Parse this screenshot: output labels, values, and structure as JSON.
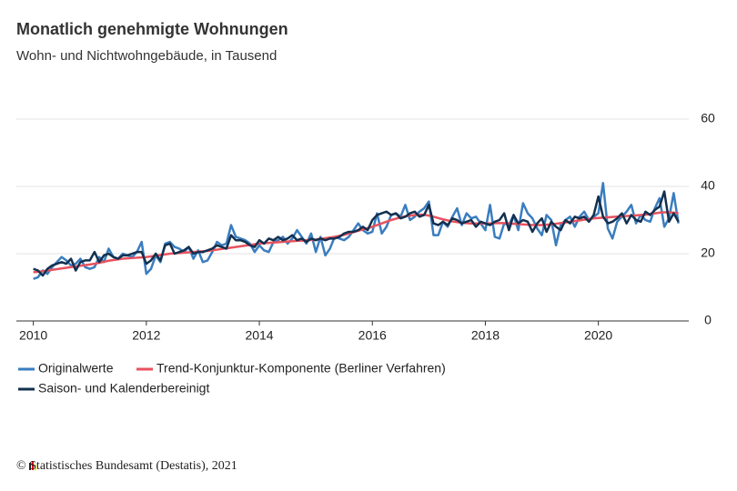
{
  "chart_data": {
    "type": "line",
    "title": "Monatlich genehmigte Wohnungen",
    "subtitle": "Wohn- und Nichtwohngebäude, in Tausend",
    "source": "© Statistisches Bundesamt (Destatis), 2021",
    "xlim": [
      2009.7,
      2021.6
    ],
    "xticks": [
      2010,
      2012,
      2014,
      2016,
      2018,
      2020
    ],
    "ylim": [
      0,
      60
    ],
    "yticks": [
      0,
      20,
      40,
      60
    ],
    "grid": true,
    "legend": "bottom",
    "x": [
      2010,
      2010.083,
      2010.167,
      2010.25,
      2010.333,
      2010.417,
      2010.5,
      2010.583,
      2010.667,
      2010.75,
      2010.833,
      2010.917,
      2011,
      2011.083,
      2011.167,
      2011.25,
      2011.333,
      2011.417,
      2011.5,
      2011.583,
      2011.667,
      2011.75,
      2011.833,
      2011.917,
      2012,
      2012.083,
      2012.167,
      2012.25,
      2012.333,
      2012.417,
      2012.5,
      2012.583,
      2012.667,
      2012.75,
      2012.833,
      2012.917,
      2013,
      2013.083,
      2013.167,
      2013.25,
      2013.333,
      2013.417,
      2013.5,
      2013.583,
      2013.667,
      2013.75,
      2013.833,
      2013.917,
      2014,
      2014.083,
      2014.167,
      2014.25,
      2014.333,
      2014.417,
      2014.5,
      2014.583,
      2014.667,
      2014.75,
      2014.833,
      2014.917,
      2015,
      2015.083,
      2015.167,
      2015.25,
      2015.333,
      2015.417,
      2015.5,
      2015.583,
      2015.667,
      2015.75,
      2015.833,
      2015.917,
      2016,
      2016.083,
      2016.167,
      2016.25,
      2016.333,
      2016.417,
      2016.5,
      2016.583,
      2016.667,
      2016.75,
      2016.833,
      2016.917,
      2017,
      2017.083,
      2017.167,
      2017.25,
      2017.333,
      2017.417,
      2017.5,
      2017.583,
      2017.667,
      2017.75,
      2017.833,
      2017.917,
      2018,
      2018.083,
      2018.167,
      2018.25,
      2018.333,
      2018.417,
      2018.5,
      2018.583,
      2018.667,
      2018.75,
      2018.833,
      2018.917,
      2019,
      2019.083,
      2019.167,
      2019.25,
      2019.333,
      2019.417,
      2019.5,
      2019.583,
      2019.667,
      2019.75,
      2019.833,
      2019.917,
      2020,
      2020.083,
      2020.167,
      2020.25,
      2020.333,
      2020.417,
      2020.5,
      2020.583,
      2020.667,
      2020.75,
      2020.833,
      2020.917,
      2021,
      2021.083,
      2021.167,
      2021.25,
      2021.333,
      2021.417
    ],
    "series": [
      {
        "name": "Originalwerte",
        "color": "#3a7dbf",
        "values": [
          12.5,
          13.0,
          15.0,
          14.0,
          16.0,
          17.5,
          19.0,
          18.0,
          16.5,
          17.0,
          18.5,
          16.0,
          15.5,
          16.0,
          19.0,
          17.5,
          21.5,
          19.0,
          18.5,
          20.0,
          19.5,
          19.0,
          20.5,
          23.5,
          14.0,
          15.5,
          19.5,
          17.5,
          23.0,
          23.5,
          22.0,
          21.5,
          20.5,
          22.0,
          18.5,
          21.0,
          17.5,
          18.0,
          20.5,
          23.5,
          22.5,
          23.0,
          28.5,
          25.0,
          24.5,
          24.0,
          23.0,
          20.5,
          22.5,
          21.0,
          20.5,
          23.5,
          24.0,
          25.0,
          23.0,
          24.5,
          27.0,
          25.0,
          23.0,
          26.0,
          20.5,
          25.0,
          19.5,
          21.5,
          25.0,
          24.5,
          24.0,
          25.0,
          27.0,
          29.0,
          27.0,
          26.0,
          26.5,
          32.0,
          26.0,
          28.0,
          31.5,
          32.0,
          31.0,
          34.5,
          30.0,
          31.0,
          32.5,
          33.5,
          35.5,
          25.5,
          25.5,
          29.5,
          28.0,
          31.0,
          33.5,
          28.5,
          32.0,
          30.5,
          31.0,
          29.0,
          27.0,
          34.5,
          25.0,
          24.5,
          29.0,
          28.5,
          31.5,
          27.0,
          35.0,
          32.0,
          30.5,
          27.5,
          25.5,
          31.5,
          30.0,
          22.5,
          28.5,
          30.0,
          31.0,
          28.0,
          31.0,
          32.5,
          30.0,
          31.0,
          32.0,
          41.0,
          27.5,
          24.5,
          29.5,
          31.0,
          32.5,
          34.5,
          29.0,
          31.5,
          30.0,
          29.5,
          33.5,
          36.5,
          28.0,
          30.5,
          38.0,
          29.0
        ]
      },
      {
        "name": "Trend-Konjunktur-Komponente (Berliner Verfahren)",
        "color": "#e8525e",
        "values": [
          14.5,
          14.6,
          14.8,
          15.0,
          15.2,
          15.4,
          15.6,
          15.8,
          16.0,
          16.2,
          16.4,
          16.6,
          16.8,
          17.0,
          17.3,
          17.6,
          17.9,
          18.1,
          18.3,
          18.5,
          18.6,
          18.7,
          18.8,
          18.9,
          19.0,
          19.2,
          19.4,
          19.6,
          19.8,
          20.0,
          20.1,
          20.2,
          20.3,
          20.4,
          20.5,
          20.6,
          20.7,
          20.8,
          21.0,
          21.2,
          21.4,
          21.6,
          21.8,
          22.0,
          22.2,
          22.4,
          22.6,
          22.8,
          23.0,
          23.1,
          23.2,
          23.3,
          23.4,
          23.5,
          23.6,
          23.7,
          23.8,
          23.9,
          24.0,
          24.1,
          24.2,
          24.4,
          24.6,
          24.8,
          25.0,
          25.3,
          25.6,
          26.0,
          26.4,
          26.8,
          27.2,
          27.6,
          28.0,
          28.5,
          29.0,
          29.5,
          30.0,
          30.4,
          30.8,
          31.1,
          31.3,
          31.5,
          31.6,
          31.6,
          31.3,
          31.0,
          30.6,
          30.2,
          29.9,
          29.6,
          29.4,
          29.2,
          29.1,
          29.0,
          29.0,
          29.0,
          29.0,
          29.0,
          29.1,
          29.1,
          29.1,
          29.0,
          28.9,
          28.8,
          28.7,
          28.6,
          28.5,
          28.5,
          28.5,
          28.6,
          28.7,
          28.9,
          29.1,
          29.3,
          29.5,
          29.7,
          29.9,
          30.1,
          30.3,
          30.5,
          30.6,
          30.7,
          30.8,
          30.9,
          31.0,
          31.1,
          31.2,
          31.3,
          31.4,
          31.5,
          31.6,
          31.8,
          32.0,
          32.2,
          32.3,
          32.3,
          32.2,
          32.0
        ]
      },
      {
        "name": "Saison- und Kalenderbereinigt",
        "color": "#13304f",
        "values": [
          15.5,
          15.0,
          13.5,
          15.5,
          16.5,
          17.0,
          17.5,
          17.0,
          18.5,
          15.0,
          17.5,
          18.0,
          18.0,
          20.5,
          17.5,
          19.5,
          20.0,
          19.0,
          18.5,
          19.5,
          19.5,
          20.0,
          20.5,
          20.5,
          17.0,
          18.0,
          20.0,
          18.0,
          22.5,
          23.0,
          20.0,
          20.5,
          21.0,
          22.0,
          20.0,
          20.5,
          20.5,
          21.0,
          21.5,
          22.5,
          22.0,
          21.5,
          25.5,
          24.0,
          24.0,
          23.5,
          22.5,
          22.0,
          24.0,
          23.0,
          24.5,
          24.0,
          25.0,
          24.0,
          24.5,
          25.5,
          24.0,
          24.5,
          23.5,
          24.5,
          24.0,
          24.5,
          24.0,
          24.5,
          24.5,
          25.0,
          26.0,
          26.5,
          26.5,
          27.0,
          28.0,
          27.0,
          30.0,
          31.5,
          32.0,
          32.5,
          31.5,
          32.0,
          30.5,
          31.0,
          32.0,
          32.5,
          31.0,
          31.5,
          34.5,
          29.0,
          28.5,
          29.5,
          28.5,
          30.5,
          30.0,
          29.0,
          29.5,
          30.0,
          28.0,
          29.5,
          29.0,
          28.5,
          29.5,
          30.0,
          32.0,
          27.0,
          31.5,
          29.0,
          30.0,
          29.5,
          26.5,
          29.0,
          30.5,
          26.5,
          29.5,
          28.0,
          27.0,
          30.0,
          29.0,
          31.0,
          30.5,
          31.0,
          29.5,
          31.5,
          37.0,
          31.0,
          29.0,
          29.5,
          30.5,
          32.0,
          29.0,
          31.5,
          30.0,
          29.5,
          32.5,
          31.5,
          33.0,
          34.0,
          38.5,
          29.5,
          32.0,
          29.5
        ]
      }
    ]
  }
}
